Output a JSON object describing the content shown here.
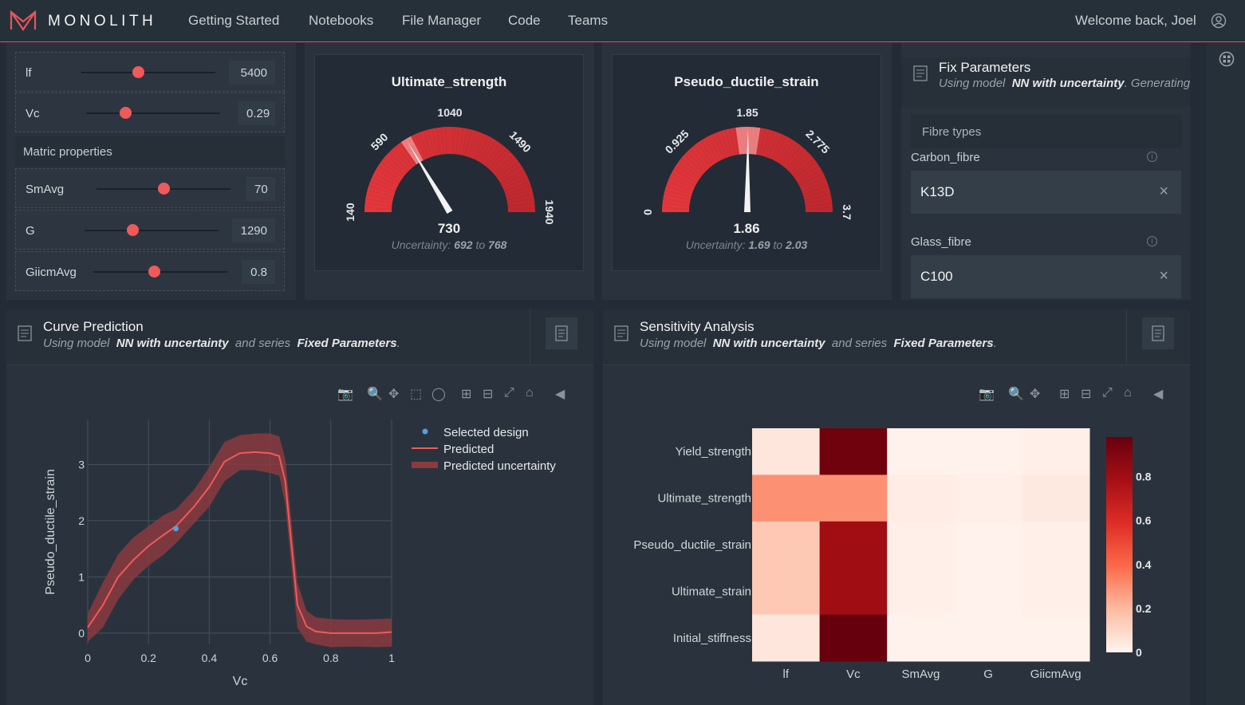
{
  "nav": {
    "brand": "MONOLITH",
    "items": [
      "Getting Started",
      "Notebooks",
      "File Manager",
      "Code",
      "Teams"
    ],
    "welcome": "Welcome back, Joel"
  },
  "sliders": {
    "rows": [
      {
        "label": "lf",
        "value": "5400",
        "fraction": 0.42
      },
      {
        "label": "Vc",
        "value": "0.29",
        "fraction": 0.29
      },
      {
        "label": "SmAvg",
        "value": "70",
        "fraction": 0.5
      },
      {
        "label": "G",
        "value": "1290",
        "fraction": 0.36
      },
      {
        "label": "GiicmAvg",
        "value": "0.8",
        "fraction": 0.45
      }
    ],
    "section": "Matric properties"
  },
  "gauges": [
    {
      "title": "Ultimate_strength",
      "min": 140,
      "max": 1940,
      "value": 730,
      "ticks": [
        "140",
        "590",
        "1040",
        "1490",
        "1940"
      ],
      "value_label": "730",
      "unc_prefix": "Uncertainty:",
      "unc_low": "692",
      "unc_mid": "to",
      "unc_high": "768",
      "unc_low_val": 692,
      "unc_high_val": 768
    },
    {
      "title": "Pseudo_ductile_strain",
      "min": 0,
      "max": 3.7,
      "value": 1.86,
      "ticks": [
        "0",
        "0.925",
        "1.85",
        "2.775",
        "3.7"
      ],
      "value_label": "1.86",
      "unc_prefix": "Uncertainty:",
      "unc_low": "1.69",
      "unc_mid": "to",
      "unc_high": "2.03",
      "unc_low_val": 1.69,
      "unc_high_val": 2.03
    }
  ],
  "fix": {
    "title": "Fix Parameters",
    "sub_prefix": "Using model",
    "model": "NN with uncertainty",
    "sub_suffix": ". Generating",
    "fibre_header": "Fibre types",
    "carbon_label": "Carbon_fibre",
    "carbon_value": "K13D",
    "glass_label": "Glass_fibre",
    "glass_value": "C100",
    "info": "i",
    "clear": "×"
  },
  "curve": {
    "title": "Curve Prediction",
    "sub_prefix": "Using model",
    "model": "NN with uncertainty",
    "sub_mid": "and series",
    "series": "Fixed Parameters",
    "sub_end": "."
  },
  "sens": {
    "title": "Sensitivity Analysis",
    "sub_prefix": "Using model",
    "model": "NN with uncertainty",
    "sub_mid": "and series",
    "series": "Fixed Parameters",
    "sub_end": "."
  },
  "chart_data": [
    {
      "type": "line",
      "xlabel": "Vc",
      "ylabel": "Pseudo_ductile_strain",
      "xlim": [
        0,
        1
      ],
      "ylim": [
        -0.2,
        3.8
      ],
      "x_ticks": [
        "0",
        "0.2",
        "0.4",
        "0.6",
        "0.8",
        "1"
      ],
      "y_ticks": [
        "0",
        "1",
        "2",
        "3"
      ],
      "legend": [
        "Selected design",
        "Predicted",
        "Predicted uncertainty"
      ],
      "legend_position": "right",
      "colors": {
        "line": "#f05a5a",
        "band": "#8a3b40",
        "point": "#4fa3e0"
      },
      "selected": {
        "x": 0.29,
        "y": 1.86
      },
      "x": [
        0,
        0.05,
        0.1,
        0.15,
        0.2,
        0.25,
        0.29,
        0.35,
        0.4,
        0.45,
        0.5,
        0.55,
        0.6,
        0.63,
        0.65,
        0.67,
        0.69,
        0.72,
        0.75,
        0.8,
        0.85,
        0.9,
        0.95,
        1.0
      ],
      "y": [
        0.1,
        0.5,
        1.0,
        1.3,
        1.55,
        1.75,
        1.9,
        2.25,
        2.6,
        3.05,
        3.2,
        3.22,
        3.2,
        3.15,
        2.7,
        1.6,
        0.5,
        0.12,
        0.03,
        0.0,
        0.0,
        0.0,
        0.0,
        0.02
      ],
      "band_upper": [
        0.35,
        0.9,
        1.4,
        1.7,
        1.9,
        2.1,
        2.2,
        2.55,
        2.95,
        3.4,
        3.52,
        3.55,
        3.55,
        3.5,
        3.1,
        2.0,
        0.9,
        0.4,
        0.28,
        0.25,
        0.24,
        0.24,
        0.25,
        0.26
      ],
      "band_lower": [
        -0.15,
        0.1,
        0.6,
        0.95,
        1.2,
        1.4,
        1.6,
        1.95,
        2.25,
        2.7,
        2.9,
        2.9,
        2.85,
        2.8,
        2.3,
        1.2,
        0.1,
        -0.15,
        -0.2,
        -0.25,
        -0.24,
        -0.24,
        -0.25,
        -0.24
      ]
    },
    {
      "type": "heatmap",
      "x_categories": [
        "lf",
        "Vc",
        "SmAvg",
        "G",
        "GiicmAvg"
      ],
      "y_categories": [
        "Yield_strength",
        "Ultimate_strength",
        "Pseudo_ductile_strain",
        "Ultimate_strain",
        "Initial_stiffness"
      ],
      "values": [
        [
          0.05,
          0.95,
          0.01,
          0.01,
          0.02
        ],
        [
          0.3,
          0.3,
          0.03,
          0.02,
          0.04
        ],
        [
          0.15,
          0.8,
          0.02,
          0.01,
          0.02
        ],
        [
          0.15,
          0.8,
          0.02,
          0.01,
          0.02
        ],
        [
          0.05,
          0.98,
          0.01,
          0.01,
          0.01
        ]
      ],
      "colorbar_ticks": [
        "0",
        "0.2",
        "0.4",
        "0.6",
        "0.8"
      ],
      "zlim": [
        0,
        0.98
      ]
    }
  ]
}
